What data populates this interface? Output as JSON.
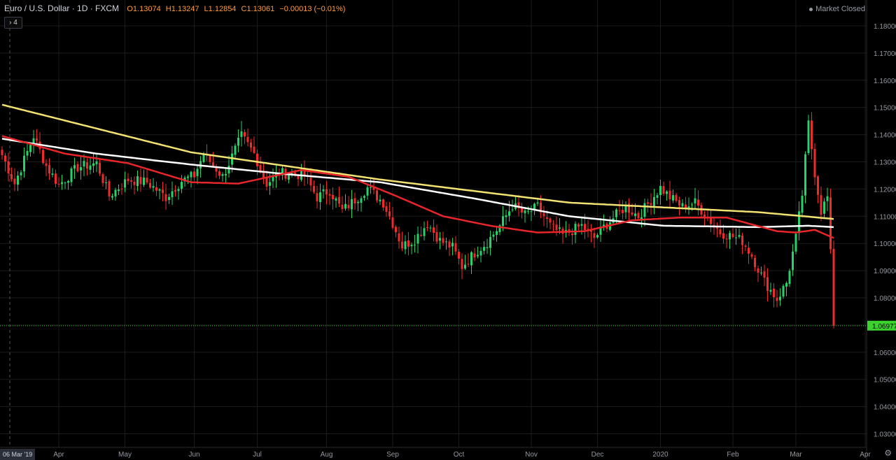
{
  "legend": {
    "symbol": "Euro / U.S. Dollar · 1D · FXCM",
    "open": "O1.13074",
    "high": "H1.13247",
    "low": "L1.12854",
    "close": "C1.13061",
    "change": "−0.00013 (−0.01%)"
  },
  "indicator_toggle": "4",
  "status": "Market Closed",
  "colors": {
    "background": "#000000",
    "up": "#26d26a",
    "down": "#ef2b2b",
    "ma_yellow": "#f2e272",
    "ma_white": "#ffffff",
    "ma_red": "#e8262a",
    "price_line": "#3cd22e",
    "grid": "#1c1c1c",
    "axis_text": "#9598a1"
  },
  "chart_data": {
    "type": "candlestick",
    "x_axis_start_label": "06 Mar '19",
    "x_ticks": [
      {
        "label": "Apr",
        "i": 18
      },
      {
        "label": "May",
        "i": 39
      },
      {
        "label": "Jun",
        "i": 61
      },
      {
        "label": "Jul",
        "i": 81
      },
      {
        "label": "Aug",
        "i": 103
      },
      {
        "label": "Sep",
        "i": 124
      },
      {
        "label": "Oct",
        "i": 145
      },
      {
        "label": "Nov",
        "i": 168
      },
      {
        "label": "Dec",
        "i": 189
      },
      {
        "label": "2020",
        "i": 209
      },
      {
        "label": "Feb",
        "i": 232
      },
      {
        "label": "Mar",
        "i": 252
      },
      {
        "label": "Apr",
        "i": 274
      }
    ],
    "n_bars": 265,
    "ylim": [
      1.025,
      1.1895
    ],
    "y_ticks": [
      "1.03000",
      "1.04000",
      "1.05000",
      "1.06000",
      "1.07000",
      "1.08000",
      "1.09000",
      "1.10000",
      "1.11000",
      "1.12000",
      "1.13000",
      "1.14000",
      "1.15000",
      "1.16000",
      "1.17000",
      "1.18000"
    ],
    "last_price": "1.06977",
    "last_price_value": 1.06977,
    "close_anchors": [
      [
        0,
        1.1325
      ],
      [
        4,
        1.122
      ],
      [
        10,
        1.1395
      ],
      [
        14,
        1.1285
      ],
      [
        18,
        1.1215
      ],
      [
        24,
        1.128
      ],
      [
        30,
        1.1295
      ],
      [
        34,
        1.1175
      ],
      [
        40,
        1.1235
      ],
      [
        46,
        1.1225
      ],
      [
        52,
        1.117
      ],
      [
        57,
        1.123
      ],
      [
        61,
        1.125
      ],
      [
        64,
        1.133
      ],
      [
        70,
        1.1245
      ],
      [
        76,
        1.1395
      ],
      [
        80,
        1.133
      ],
      [
        84,
        1.122
      ],
      [
        88,
        1.126
      ],
      [
        96,
        1.125
      ],
      [
        100,
        1.117
      ],
      [
        104,
        1.1195
      ],
      [
        108,
        1.112
      ],
      [
        112,
        1.116
      ],
      [
        116,
        1.1205
      ],
      [
        121,
        1.115
      ],
      [
        124,
        1.1075
      ],
      [
        127,
        1.099
      ],
      [
        131,
        1.1015
      ],
      [
        135,
        1.1075
      ],
      [
        139,
        1.101
      ],
      [
        143,
        1.0985
      ],
      [
        146,
        1.0915
      ],
      [
        150,
        1.0965
      ],
      [
        154,
        1.1005
      ],
      [
        158,
        1.1065
      ],
      [
        162,
        1.114
      ],
      [
        166,
        1.1105
      ],
      [
        170,
        1.1135
      ],
      [
        174,
        1.1065
      ],
      [
        178,
        1.103
      ],
      [
        184,
        1.1065
      ],
      [
        188,
        1.102
      ],
      [
        191,
        1.106
      ],
      [
        195,
        1.1105
      ],
      [
        198,
        1.1135
      ],
      [
        202,
        1.11
      ],
      [
        206,
        1.116
      ],
      [
        209,
        1.1205
      ],
      [
        212,
        1.117
      ],
      [
        216,
        1.1135
      ],
      [
        220,
        1.115
      ],
      [
        224,
        1.1095
      ],
      [
        228,
        1.104
      ],
      [
        232,
        1.1025
      ],
      [
        235,
        1.101
      ],
      [
        238,
        1.0955
      ],
      [
        242,
        1.086
      ],
      [
        246,
        1.0795
      ],
      [
        249,
        1.0855
      ],
      [
        252,
        1.102
      ],
      [
        254,
        1.118
      ],
      [
        256,
        1.144
      ],
      [
        258,
        1.126
      ],
      [
        260,
        1.112
      ],
      [
        262,
        1.117
      ],
      [
        263,
        1.096
      ],
      [
        264,
        1.0698
      ]
    ],
    "moving_averages": [
      {
        "color": "yellow",
        "anchors": [
          [
            0,
            1.151
          ],
          [
            60,
            1.1335
          ],
          [
            120,
            1.1235
          ],
          [
            180,
            1.115
          ],
          [
            240,
            1.1115
          ],
          [
            264,
            1.109
          ]
        ]
      },
      {
        "color": "white",
        "anchors": [
          [
            0,
            1.1385
          ],
          [
            30,
            1.133
          ],
          [
            60,
            1.129
          ],
          [
            90,
            1.1255
          ],
          [
            120,
            1.1225
          ],
          [
            150,
            1.1165
          ],
          [
            180,
            1.11
          ],
          [
            210,
            1.1065
          ],
          [
            240,
            1.106
          ],
          [
            256,
            1.1065
          ],
          [
            264,
            1.106
          ]
        ]
      },
      {
        "color": "red",
        "anchors": [
          [
            0,
            1.1395
          ],
          [
            20,
            1.133
          ],
          [
            40,
            1.1295
          ],
          [
            60,
            1.1225
          ],
          [
            75,
            1.122
          ],
          [
            95,
            1.127
          ],
          [
            110,
            1.1245
          ],
          [
            125,
            1.1175
          ],
          [
            140,
            1.11
          ],
          [
            155,
            1.1065
          ],
          [
            170,
            1.104
          ],
          [
            185,
            1.1045
          ],
          [
            200,
            1.1085
          ],
          [
            215,
            1.1095
          ],
          [
            230,
            1.1095
          ],
          [
            246,
            1.1045
          ],
          [
            252,
            1.104
          ],
          [
            258,
            1.105
          ],
          [
            264,
            1.102
          ]
        ]
      }
    ]
  }
}
